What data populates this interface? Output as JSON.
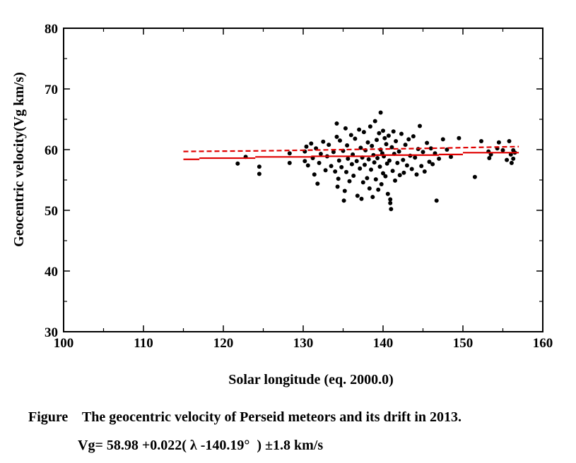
{
  "caption": {
    "line1": "Figure    The geocentric velocity of Perseid meteors and its drift in 2013.",
    "line2": "Vg= 58.98 +0.022( λ -140.19°  ) ±1.8 km/s"
  },
  "chart_data": {
    "type": "scatter",
    "title": "",
    "xlabel": "Solar longitude (eq. 2000.0)",
    "ylabel": "Geocentric velocity(Vg km/s)",
    "xlim": [
      100,
      160
    ],
    "ylim": [
      30,
      80
    ],
    "xticks": [
      "100",
      "110",
      "120",
      "130",
      "140",
      "150",
      "160"
    ],
    "yticks": [
      "30",
      "40",
      "50",
      "60",
      "70",
      "80"
    ],
    "grid": false,
    "colors": {
      "points": "#000000",
      "fit_line": "#e00000",
      "axes": "#000000"
    },
    "series": [
      {
        "type": "scatter",
        "points": [
          [
            121.8,
            57.7
          ],
          [
            122.8,
            58.8
          ],
          [
            124.5,
            57.2
          ],
          [
            124.5,
            56.0
          ],
          [
            128.3,
            57.8
          ],
          [
            128.3,
            59.4
          ],
          [
            130.2,
            58.1
          ],
          [
            130.2,
            59.7
          ],
          [
            130.4,
            60.5
          ],
          [
            130.6,
            57.4
          ],
          [
            131.0,
            61.0
          ],
          [
            131.2,
            58.6
          ],
          [
            131.4,
            55.9
          ],
          [
            131.6,
            60.2
          ],
          [
            131.8,
            54.4
          ],
          [
            132.0,
            57.8
          ],
          [
            132.2,
            59.3
          ],
          [
            132.5,
            61.3
          ],
          [
            132.8,
            56.6
          ],
          [
            133.0,
            58.9
          ],
          [
            133.2,
            60.8
          ],
          [
            133.5,
            57.3
          ],
          [
            133.8,
            59.6
          ],
          [
            134.0,
            56.4
          ],
          [
            134.2,
            64.3
          ],
          [
            134.2,
            62.1
          ],
          [
            134.3,
            53.9
          ],
          [
            134.4,
            55.2
          ],
          [
            134.5,
            58.2
          ],
          [
            134.6,
            61.5
          ],
          [
            134.8,
            57.1
          ],
          [
            135.0,
            59.8
          ],
          [
            135.1,
            51.6
          ],
          [
            135.2,
            53.2
          ],
          [
            135.3,
            63.5
          ],
          [
            135.4,
            56.3
          ],
          [
            135.5,
            60.7
          ],
          [
            135.6,
            58.5
          ],
          [
            135.8,
            54.8
          ],
          [
            136.0,
            62.4
          ],
          [
            136.1,
            57.6
          ],
          [
            136.2,
            59.2
          ],
          [
            136.3,
            55.7
          ],
          [
            136.5,
            61.8
          ],
          [
            136.7,
            58.1
          ],
          [
            136.8,
            52.4
          ],
          [
            137.0,
            63.3
          ],
          [
            137.1,
            56.9
          ],
          [
            137.2,
            60.3
          ],
          [
            137.3,
            51.9
          ],
          [
            137.4,
            58.7
          ],
          [
            137.5,
            54.6
          ],
          [
            137.6,
            62.9
          ],
          [
            137.7,
            57.5
          ],
          [
            137.8,
            59.9
          ],
          [
            138.0,
            55.3
          ],
          [
            138.1,
            61.2
          ],
          [
            138.2,
            58.4
          ],
          [
            138.3,
            53.6
          ],
          [
            138.4,
            63.8
          ],
          [
            138.5,
            56.7
          ],
          [
            138.6,
            60.6
          ],
          [
            138.7,
            52.2
          ],
          [
            138.8,
            59.1
          ],
          [
            138.9,
            57.9
          ],
          [
            139.0,
            64.7
          ],
          [
            139.1,
            55.1
          ],
          [
            139.2,
            61.6
          ],
          [
            139.3,
            58.6
          ],
          [
            139.4,
            53.4
          ],
          [
            139.5,
            62.7
          ],
          [
            139.6,
            57.2
          ],
          [
            139.7,
            66.1
          ],
          [
            139.7,
            60.0
          ],
          [
            139.8,
            54.3
          ],
          [
            139.9,
            59.4
          ],
          [
            140.0,
            63.1
          ],
          [
            140.0,
            56.1
          ],
          [
            140.1,
            58.9
          ],
          [
            140.2,
            61.9
          ],
          [
            140.3,
            55.6
          ],
          [
            140.4,
            60.9
          ],
          [
            140.5,
            57.7
          ],
          [
            140.6,
            52.7
          ],
          [
            140.7,
            62.3
          ],
          [
            140.8,
            58.2
          ],
          [
            140.9,
            51.8
          ],
          [
            140.9,
            51.2
          ],
          [
            141.0,
            50.2
          ],
          [
            141.1,
            60.4
          ],
          [
            141.2,
            56.5
          ],
          [
            141.3,
            63.0
          ],
          [
            141.4,
            59.3
          ],
          [
            141.5,
            54.9
          ],
          [
            141.6,
            61.4
          ],
          [
            141.8,
            57.8
          ],
          [
            142.0,
            59.7
          ],
          [
            142.1,
            55.8
          ],
          [
            142.3,
            62.6
          ],
          [
            142.5,
            58.3
          ],
          [
            142.6,
            56.2
          ],
          [
            142.8,
            60.8
          ],
          [
            143.0,
            57.4
          ],
          [
            143.2,
            61.7
          ],
          [
            143.4,
            59.0
          ],
          [
            143.6,
            56.8
          ],
          [
            143.8,
            62.2
          ],
          [
            144.0,
            58.7
          ],
          [
            144.2,
            55.9
          ],
          [
            144.4,
            60.1
          ],
          [
            144.6,
            63.9
          ],
          [
            144.8,
            57.3
          ],
          [
            145.0,
            59.6
          ],
          [
            145.2,
            56.4
          ],
          [
            145.5,
            61.1
          ],
          [
            145.8,
            58.0
          ],
          [
            146.0,
            60.2
          ],
          [
            146.2,
            57.6
          ],
          [
            146.5,
            59.4
          ],
          [
            146.7,
            51.6
          ],
          [
            147.0,
            58.5
          ],
          [
            147.5,
            61.7
          ],
          [
            148.0,
            60.0
          ],
          [
            148.5,
            58.8
          ],
          [
            149.5,
            61.9
          ],
          [
            151.5,
            55.5
          ],
          [
            152.3,
            61.4
          ],
          [
            153.2,
            59.7
          ],
          [
            153.3,
            58.6
          ],
          [
            153.5,
            59.2
          ],
          [
            154.3,
            60.2
          ],
          [
            154.5,
            61.2
          ],
          [
            155.0,
            59.9
          ],
          [
            155.5,
            58.3
          ],
          [
            155.8,
            61.4
          ],
          [
            156.0,
            59.2
          ],
          [
            156.1,
            57.8
          ],
          [
            156.3,
            58.5
          ],
          [
            156.3,
            59.9
          ],
          [
            156.5,
            59.5
          ]
        ]
      },
      {
        "type": "line",
        "style": "solid",
        "segments": [
          [
            [
              115,
              58.4
            ],
            [
              117,
              58.4
            ]
          ],
          [
            [
              117,
              58.6
            ],
            [
              124,
              58.6
            ]
          ],
          [
            [
              124,
              58.8
            ],
            [
              131,
              58.8
            ]
          ],
          [
            [
              131,
              58.9
            ],
            [
              139,
              58.9
            ]
          ],
          [
            [
              139,
              59.1
            ],
            [
              147,
              59.1
            ]
          ],
          [
            [
              147,
              59.2
            ],
            [
              150,
              59.2
            ]
          ],
          [
            [
              150,
              59.5
            ],
            [
              157,
              59.5
            ]
          ]
        ]
      },
      {
        "type": "line",
        "style": "dashed",
        "points": [
          [
            115,
            59.7
          ],
          [
            125,
            59.8
          ],
          [
            135,
            60.0
          ],
          [
            145,
            60.2
          ],
          [
            157,
            60.5
          ]
        ]
      }
    ]
  }
}
